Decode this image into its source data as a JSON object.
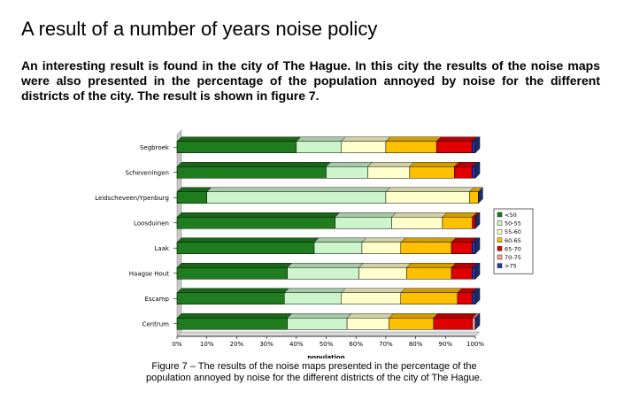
{
  "page": {
    "heading": "A result of a number of years noise policy",
    "intro": "An interesting result is found in the city of The Hague. In this city the results of the noise maps were also presented in the percentage of the population annoyed by noise for the different districts of the city. The result is shown in figure 7.",
    "caption_line1": "Figure 7 –  The results of the noise maps presented in the percentage of the",
    "caption_line2": "population annoyed by noise for the different districts of the city of The Hague."
  },
  "chart_data": {
    "type": "bar",
    "orientation": "horizontal",
    "stacked": true,
    "percent_stacked": true,
    "xlabel": "population",
    "xlim": [
      0,
      100
    ],
    "x_ticks": [
      "0%",
      "10%",
      "20%",
      "30%",
      "40%",
      "50%",
      "60%",
      "70%",
      "80%",
      "90%",
      "100%"
    ],
    "legend_position": "right",
    "categories": [
      "Segbroek",
      "Scheveningen",
      "Leidscheveen/Ypenburg",
      "Loosduinen",
      "Laak",
      "Haagse Hout",
      "Escamp",
      "Centrum"
    ],
    "series": [
      {
        "name": "<50",
        "color": "#1f7d1f",
        "values": [
          40,
          50,
          10,
          53,
          46,
          37,
          36,
          37
        ]
      },
      {
        "name": "50-55",
        "color": "#ccf5cc",
        "values": [
          15,
          14,
          60,
          19,
          16,
          24,
          19,
          20
        ]
      },
      {
        "name": "55-60",
        "color": "#ffffcc",
        "values": [
          15,
          14,
          28,
          17,
          13,
          16,
          20,
          14
        ]
      },
      {
        "name": "60-65",
        "color": "#ffc000",
        "values": [
          17,
          15,
          3,
          10,
          17,
          15,
          19,
          15
        ]
      },
      {
        "name": "65-70",
        "color": "#e00000",
        "values": [
          12,
          6,
          0,
          1,
          7,
          7,
          5,
          13
        ]
      },
      {
        "name": "70-75",
        "color": "#ff9999",
        "values": [
          0,
          0,
          0,
          0,
          0,
          0,
          0,
          1
        ]
      },
      {
        "name": ">75",
        "color": "#1a3ca8",
        "values": [
          1,
          1,
          0,
          0,
          1,
          1,
          1,
          0
        ]
      }
    ]
  }
}
